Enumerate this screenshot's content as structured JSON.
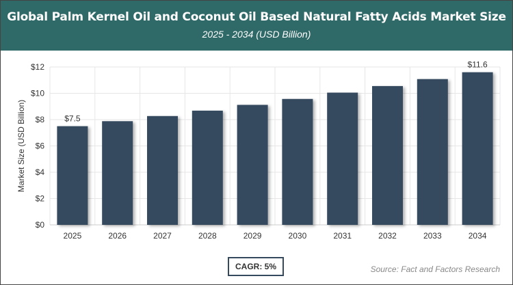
{
  "header": {
    "title": "Global Palm Kernel Oil and Coconut Oil Based Natural Fatty Acids Market Size",
    "subtitle": "2025 - 2034 (USD Billion)"
  },
  "chart_data": {
    "type": "bar",
    "categories": [
      "2025",
      "2026",
      "2027",
      "2028",
      "2029",
      "2030",
      "2031",
      "2032",
      "2033",
      "2034"
    ],
    "values": [
      7.5,
      7.88,
      8.27,
      8.68,
      9.12,
      9.57,
      10.05,
      10.55,
      11.08,
      11.6
    ],
    "data_labels": {
      "0": "$7.5",
      "9": "$11.6"
    },
    "ylabel": "Market Size (USD Billion)",
    "ylim": [
      0,
      12
    ],
    "yticks": [
      0,
      2,
      4,
      6,
      8,
      10,
      12
    ],
    "ytick_labels": [
      "$0",
      "$2",
      "$4",
      "$6",
      "$8",
      "$10",
      "$12"
    ],
    "bar_color": "#34495e",
    "grid": true
  },
  "footer": {
    "cagr": "CAGR: 5%",
    "source": "Source: Fact and Factors Research"
  }
}
